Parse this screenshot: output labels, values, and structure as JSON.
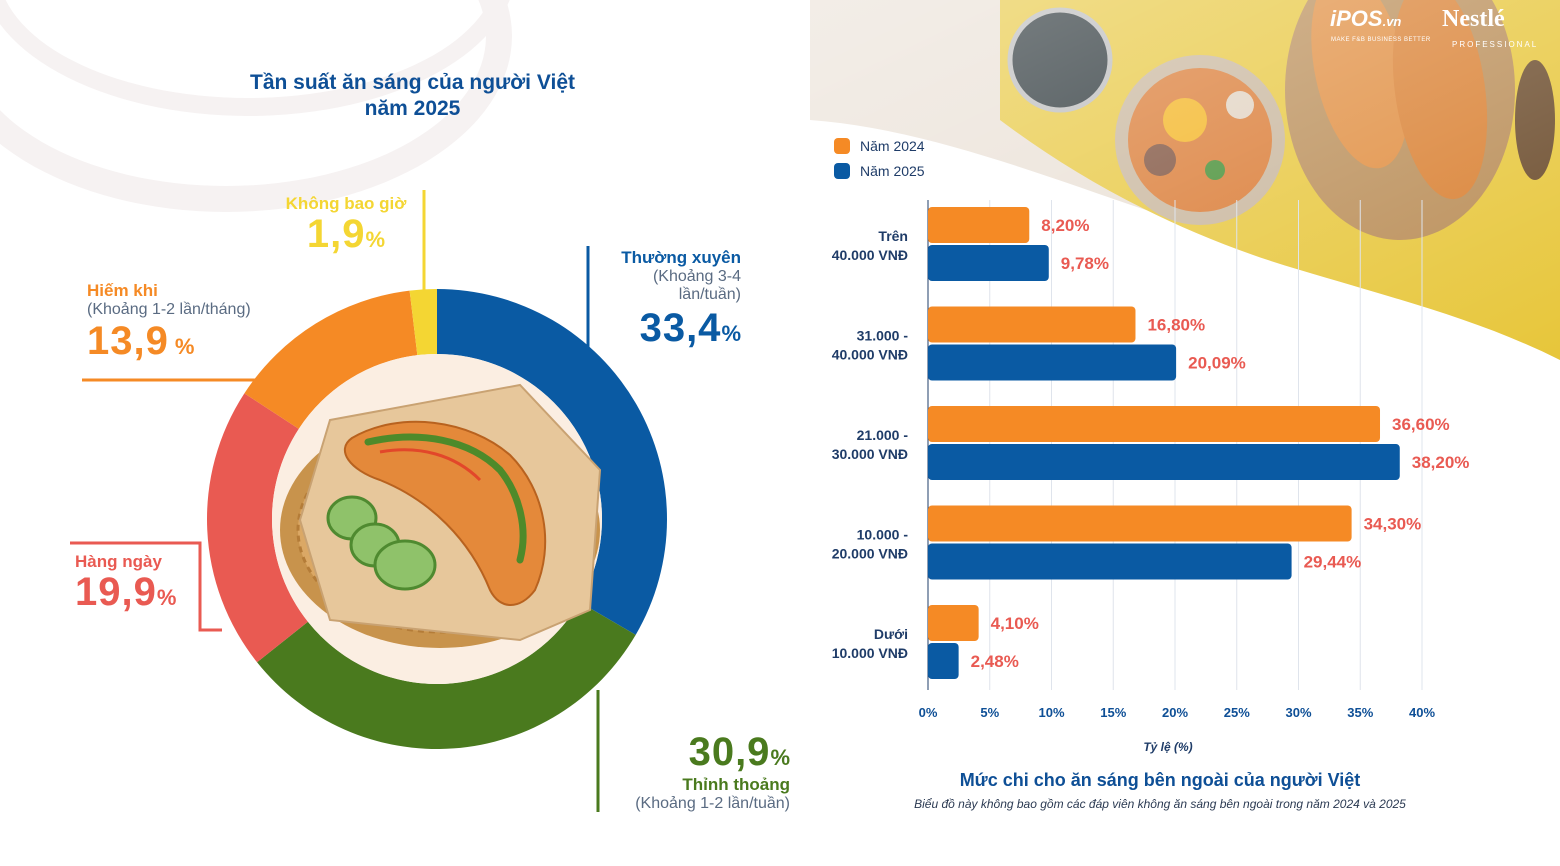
{
  "donut": {
    "title_line1": "Tần suất ăn sáng của người Việt",
    "title_line2": "năm 2025",
    "segments": [
      {
        "key": "thuong_xuyen",
        "name": "Thường xuyên",
        "sub_line1": "(Khoảng 3-4",
        "sub_line2": "lần/tuần)",
        "value": 33.4,
        "value_text": "33,4",
        "color": "#0a5aa3"
      },
      {
        "key": "thinh_thoang",
        "name": "Thỉnh thoảng",
        "sub": "(Khoảng 1-2 lần/tuần)",
        "value": 30.9,
        "value_text": "30,9",
        "color": "#4a7a1e"
      },
      {
        "key": "hang_ngay",
        "name": "Hàng ngày",
        "value": 19.9,
        "value_text": "19,9",
        "color": "#e95a52"
      },
      {
        "key": "hiem_khi",
        "name": "Hiếm khi",
        "sub": "(Khoảng 1-2 lần/tháng)",
        "value": 13.9,
        "value_text": "13,9",
        "color": "#f58a25"
      },
      {
        "key": "khong_bao_gio",
        "name": "Không bao giờ",
        "value": 1.9,
        "value_text": "1,9",
        "color": "#f4d633"
      }
    ],
    "percent_sign": "%"
  },
  "logos": {
    "ipos": "iPOS",
    "ipos_suffix": ".vn",
    "ipos_tag": "MAKE F&B BUSINESS BETTER",
    "nestle": "Nestlé",
    "nestle_tag": "PROFESSIONAL"
  },
  "legend": {
    "y2024": "Năm 2024",
    "y2025": "Năm 2025"
  },
  "colors": {
    "orange": "#f58a25",
    "blue": "#0a5aa3",
    "label_red": "#e95a52",
    "navy": "#1f3c68"
  },
  "chart_data": {
    "type": "bar",
    "orientation": "horizontal",
    "title": "Mức chi cho ăn sáng bên ngoài của người Việt",
    "note": "Biểu đồ này không bao gồm các đáp viên không ăn sáng bên ngoài trong năm 2024 và 2025",
    "xlabel": "Tỷ lệ (%)",
    "ylabel": "",
    "xlim": [
      0,
      40
    ],
    "x_ticks": [
      "0%",
      "5%",
      "10%",
      "15%",
      "20%",
      "25%",
      "30%",
      "35%",
      "40%"
    ],
    "categories": [
      {
        "line1": "Trên",
        "line2": "40.000 VNĐ"
      },
      {
        "line1": "31.000 -",
        "line2": "40.000 VNĐ"
      },
      {
        "line1": "21.000 -",
        "line2": "30.000 VNĐ"
      },
      {
        "line1": "10.000 -",
        "line2": "20.000 VNĐ"
      },
      {
        "line1": "Dưới",
        "line2": "10.000 VNĐ"
      }
    ],
    "series": [
      {
        "name": "Năm 2024",
        "values": [
          8.2,
          16.8,
          36.6,
          34.3,
          4.1
        ],
        "labels": [
          "8,20%",
          "16,80%",
          "36,60%",
          "34,30%",
          "4,10%"
        ]
      },
      {
        "name": "Năm 2025",
        "values": [
          9.78,
          20.09,
          38.2,
          29.44,
          2.48
        ],
        "labels": [
          "9,78%",
          "20,09%",
          "38,20%",
          "29,44%",
          "2,48%"
        ]
      }
    ]
  }
}
